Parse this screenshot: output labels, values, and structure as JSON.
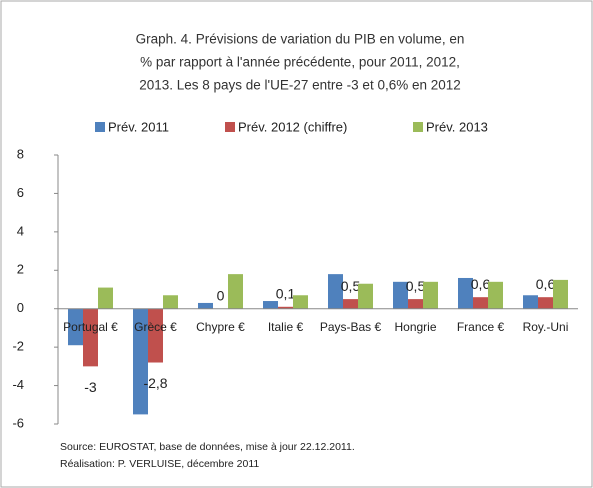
{
  "chart_data": {
    "type": "bar",
    "title": [
      "Graph. 4. Prévisions de variation du PIB  en volume, en",
      "% par rapport à l'année précédente,  pour 2011, 2012,",
      "2013. Les 8 pays de l'UE-27  entre -3 et 0,6% en 2012"
    ],
    "categories": [
      "Portugal €",
      "Grèce €",
      "Chypre €",
      "Italie €",
      "Pays-Bas €",
      "Hongrie",
      "France €",
      "Roy.-Uni"
    ],
    "series": [
      {
        "name": "Prév. 2011",
        "color": "#4f81bd",
        "values": [
          -1.9,
          -5.5,
          0.3,
          0.4,
          1.8,
          1.4,
          1.6,
          0.7
        ]
      },
      {
        "name": "Prév. 2012 (chiffre)",
        "color": "#c0504d",
        "values": [
          -3,
          -2.8,
          0,
          0.1,
          0.5,
          0.5,
          0.6,
          0.6
        ],
        "value_labels": [
          "-3",
          "-2,8",
          "0",
          "0,1",
          "0,5",
          "0,5",
          "0,6",
          "0,6"
        ]
      },
      {
        "name": "Prév. 2013",
        "color": "#9bbb59",
        "values": [
          1.1,
          0.7,
          1.8,
          0.7,
          1.3,
          1.4,
          1.4,
          1.5
        ]
      }
    ],
    "ylim": [
      -6,
      8
    ],
    "yticks": [
      -6,
      -4,
      -2,
      0,
      2,
      4,
      6,
      8
    ],
    "grid": false,
    "legend": "top",
    "source": [
      "Source: EUROSTAT, base de données, mise à jour 22.12.2011.",
      "Réalisation: P. VERLUISE, décembre 2011"
    ]
  }
}
